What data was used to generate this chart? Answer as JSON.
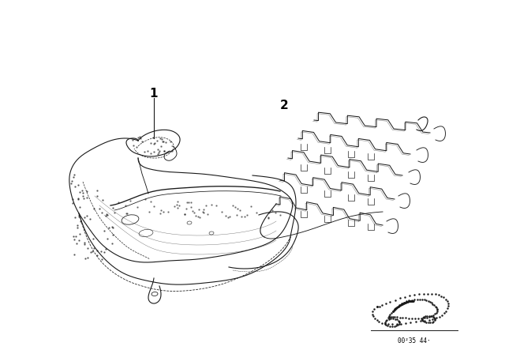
{
  "bg_color": "#ffffff",
  "label1": "1",
  "label2": "2",
  "part_number": "00²35 44·",
  "fig_width": 6.4,
  "fig_height": 4.48,
  "dpi": 100,
  "line_color": "#1a1a1a",
  "text_color": "#000000",
  "seat_dots_seed": 42,
  "seat_dots_count": 120
}
